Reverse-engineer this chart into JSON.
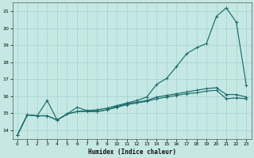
{
  "xlabel": "Humidex (Indice chaleur)",
  "background_color": "#c5e8e5",
  "grid_color": "#a8d0cc",
  "line_color": "#1a6b6b",
  "xlim": [
    -0.5,
    23.5
  ],
  "ylim": [
    13.5,
    21.5
  ],
  "yticks": [
    14,
    15,
    16,
    17,
    18,
    19,
    20,
    21
  ],
  "xticks": [
    0,
    1,
    2,
    3,
    4,
    5,
    6,
    7,
    8,
    9,
    10,
    11,
    12,
    13,
    14,
    15,
    16,
    17,
    18,
    19,
    20,
    21,
    22,
    23
  ],
  "x": [
    0,
    1,
    2,
    3,
    4,
    5,
    6,
    7,
    8,
    9,
    10,
    11,
    12,
    13,
    14,
    15,
    16,
    17,
    18,
    19,
    20,
    21,
    22,
    23
  ],
  "spike_y": [
    13.7,
    14.9,
    14.85,
    14.85,
    14.6,
    14.95,
    15.1,
    15.15,
    15.2,
    15.3,
    15.45,
    15.6,
    15.75,
    15.95,
    16.7,
    17.05,
    17.75,
    18.5,
    18.85,
    19.1,
    20.7,
    21.2,
    20.35,
    16.65
  ],
  "mid_y": [
    13.7,
    14.9,
    14.85,
    15.75,
    14.6,
    14.95,
    15.35,
    15.15,
    15.1,
    15.2,
    15.4,
    15.55,
    15.65,
    15.75,
    15.95,
    16.05,
    16.15,
    16.25,
    16.35,
    16.45,
    16.5,
    16.1,
    16.1,
    15.95
  ],
  "flat_y": [
    13.7,
    14.9,
    14.85,
    14.85,
    14.6,
    14.95,
    15.1,
    15.1,
    15.1,
    15.2,
    15.35,
    15.5,
    15.6,
    15.7,
    15.85,
    15.95,
    16.05,
    16.15,
    16.2,
    16.3,
    16.35,
    15.85,
    15.9,
    15.85
  ]
}
